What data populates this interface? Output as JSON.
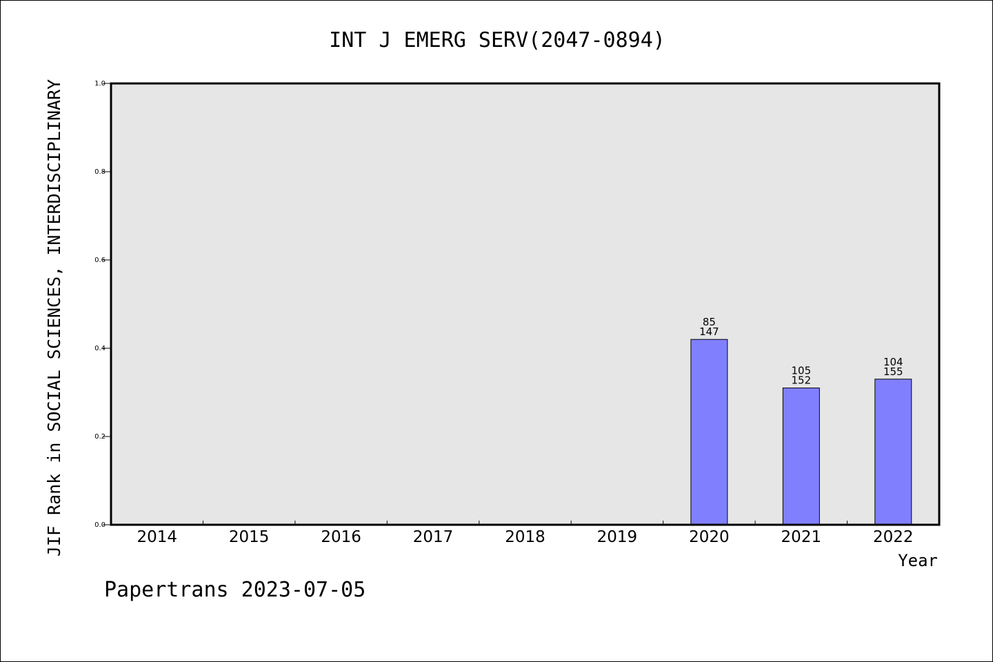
{
  "chart_data": {
    "type": "bar",
    "title": "INT J EMERG SERV(2047-0894)",
    "ylabel": "JIF Rank in SOCIAL SCIENCES, INTERDISCIPLINARY",
    "xlabel": "Year",
    "categories": [
      "2014",
      "2015",
      "2016",
      "2017",
      "2018",
      "2019",
      "2020",
      "2021",
      "2022"
    ],
    "values": [
      null,
      null,
      null,
      null,
      null,
      null,
      0.42,
      0.31,
      0.33
    ],
    "rank_labels": [
      "",
      "",
      "",
      "",
      "",
      "",
      "85",
      "105",
      "104"
    ],
    "total_labels": [
      "",
      "",
      "",
      "",
      "",
      "",
      "147",
      "152",
      "155"
    ],
    "ylim": [
      0.0,
      1.0
    ],
    "yticks": [
      "0.0",
      "0.2",
      "0.4",
      "0.6",
      "0.8",
      "1.0"
    ],
    "grid": false,
    "legend": "none",
    "colors": {
      "bar": "#8080ff",
      "plot_background": "#e6e6e6",
      "axis": "#000000"
    }
  },
  "footer": "Papertrans 2023-07-05"
}
